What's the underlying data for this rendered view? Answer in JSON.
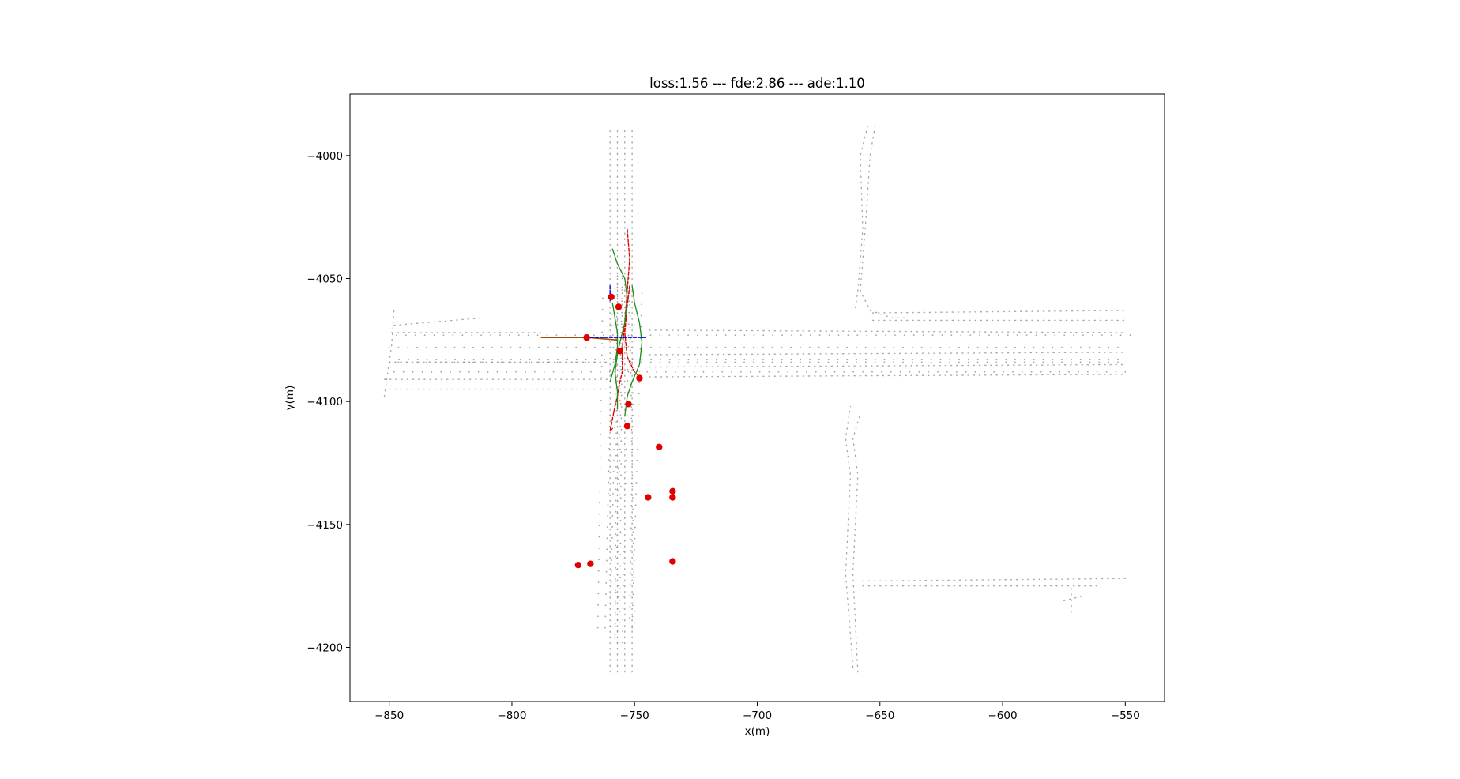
{
  "chart_data": {
    "type": "scatter",
    "title": "loss:1.56 --- fde:2.86 --- ade:1.10",
    "xlabel": "x(m)",
    "ylabel": "y(m)",
    "xlim": [
      -866,
      -534
    ],
    "ylim": [
      -4222,
      -3975
    ],
    "xticks": [
      {
        "value": -850,
        "label": "−850"
      },
      {
        "value": -800,
        "label": "−800"
      },
      {
        "value": -750,
        "label": "−750"
      },
      {
        "value": -700,
        "label": "−700"
      },
      {
        "value": -650,
        "label": "−650"
      },
      {
        "value": -600,
        "label": "−600"
      },
      {
        "value": -550,
        "label": "−550"
      }
    ],
    "yticks": [
      {
        "value": -4000,
        "label": "−4000"
      },
      {
        "value": -4050,
        "label": "−4050"
      },
      {
        "value": -4100,
        "label": "−4100"
      },
      {
        "value": -4150,
        "label": "−4150"
      },
      {
        "value": -4200,
        "label": "−4200"
      }
    ],
    "grid": false,
    "legend": "none",
    "colors": {
      "lane": "#8c8c8c",
      "agents": "#e00000",
      "history": "#0000e0",
      "ground_truth": "#e00000",
      "prediction": "#1a8c1a",
      "target_path": "#a05000",
      "axes": "#000000"
    },
    "lane_dots": [
      {
        "xs": [
          -755,
          -752
        ],
        "ys": [
          -4198,
          -4050
        ],
        "step": 4.5
      },
      {
        "xs": [
          -760,
          -757
        ],
        "ys": [
          -4196,
          -4052
        ],
        "step": 4.5
      },
      {
        "xs": [
          -758,
          -755
        ],
        "ys": [
          -4196,
          -4049
        ],
        "step": 4.5
      },
      {
        "xs": [
          -765,
          -763
        ],
        "ys": [
          -4192,
          -4058
        ],
        "step": 4.5
      },
      {
        "xs": [
          -762,
          -759
        ],
        "ys": [
          -4192,
          -4060
        ],
        "step": 4.5
      },
      {
        "xs": [
          -750,
          -752
        ],
        "ys": [
          -4190,
          -4056
        ],
        "step": 4.5
      },
      {
        "xs": [
          -758,
          -757
        ],
        "ys": [
          -4195,
          -4049
        ],
        "step": 4.5
      },
      {
        "xs": [
          -757,
          -755
        ],
        "ys": [
          -4198,
          -4050
        ],
        "step": 4.5
      },
      {
        "xs": [
          -752,
          -750
        ],
        "ys": [
          -4188,
          -4060
        ],
        "step": 4.5
      },
      {
        "xs": [
          -756,
          -755
        ],
        "ys": [
          -4190,
          -4056
        ],
        "step": 4.5
      },
      {
        "xs": [
          -751,
          -747
        ],
        "ys": [
          -4192,
          -4056
        ],
        "step": 4.5
      },
      {
        "xs": [
          -848,
          -550
        ],
        "ys": [
          -4088,
          -4088
        ],
        "step": 3.8
      },
      {
        "xs": [
          -850,
          -553
        ],
        "ys": [
          -4084,
          -4084
        ],
        "step": 3.8
      },
      {
        "xs": [
          -847,
          -548
        ],
        "ys": [
          -4073,
          -4073
        ],
        "step": 3.8
      },
      {
        "xs": [
          -850,
          -553
        ],
        "ys": [
          -4078,
          -4078
        ],
        "step": 3.8
      },
      {
        "xs": [
          -846,
          -553
        ],
        "ys": [
          -4083,
          -4083
        ],
        "step": 3.8
      }
    ],
    "lanes": [
      {
        "x": [
          -760,
          -760
        ],
        "y": [
          -4210,
          -3988
        ]
      },
      {
        "x": [
          -757,
          -757
        ],
        "y": [
          -4210,
          -3988
        ]
      },
      {
        "x": [
          -754,
          -754
        ],
        "y": [
          -4210,
          -3988
        ]
      },
      {
        "x": [
          -751,
          -751
        ],
        "y": [
          -4210,
          -3988
        ]
      },
      {
        "x": [
          -661,
          -664,
          -662,
          -664,
          -662
        ],
        "y": [
          -4208,
          -4170,
          -4130,
          -4115,
          -4102
        ]
      },
      {
        "x": [
          -659,
          -661,
          -659,
          -661,
          -658
        ],
        "y": [
          -4210,
          -4170,
          -4130,
          -4115,
          -4105
        ]
      },
      {
        "x": [
          -655,
          -658,
          -657,
          -659,
          -660
        ],
        "y": [
          -3988,
          -4000,
          -4030,
          -4055,
          -4062
        ]
      },
      {
        "x": [
          -652,
          -654,
          -656,
          -658,
          -654,
          -645,
          -640
        ],
        "y": [
          -3988,
          -4000,
          -4030,
          -4055,
          -4063,
          -4066,
          -4066
        ]
      },
      {
        "x": [
          -852,
          -849,
          -848
        ],
        "y": [
          -4098,
          -4077,
          -4062
        ]
      },
      {
        "x": [
          -848,
          -812
        ],
        "y": [
          -4069,
          -4066
        ]
      },
      {
        "x": [
          -849,
          -787
        ],
        "y": [
          -4072,
          -4072
        ]
      },
      {
        "x": [
          -850,
          -760
        ],
        "y": [
          -4084,
          -4084
        ]
      },
      {
        "x": [
          -852,
          -760
        ],
        "y": [
          -4091,
          -4091
        ]
      },
      {
        "x": [
          -850,
          -760
        ],
        "y": [
          -4095,
          -4095
        ]
      },
      {
        "x": [
          -744,
          -550
        ],
        "y": [
          -4071,
          -4072
        ]
      },
      {
        "x": [
          -744,
          -550
        ],
        "y": [
          -4081,
          -4080
        ]
      },
      {
        "x": [
          -744,
          -550
        ],
        "y": [
          -4086,
          -4085
        ]
      },
      {
        "x": [
          -744,
          -550
        ],
        "y": [
          -4090,
          -4089
        ]
      },
      {
        "x": [
          -653,
          -550
        ],
        "y": [
          -4064,
          -4063
        ]
      },
      {
        "x": [
          -653,
          -550
        ],
        "y": [
          -4067,
          -4067
        ]
      },
      {
        "x": [
          -657,
          -550
        ],
        "y": [
          -4173,
          -4172
        ]
      },
      {
        "x": [
          -657,
          -560
        ],
        "y": [
          -4175,
          -4175
        ]
      },
      {
        "x": [
          -572,
          -572
        ],
        "y": [
          -4176,
          -4186
        ]
      },
      {
        "x": [
          -575,
          -571,
          -567
        ],
        "y": [
          -4181,
          -4180,
          -4179
        ]
      }
    ],
    "agents": {
      "x": [
        -759.5,
        -756.5,
        -769.5,
        -756,
        -748,
        -752.5,
        -753,
        -740,
        -744.5,
        -734.5,
        -734.5,
        -734.5,
        -773,
        -768
      ],
      "y": [
        -4057.5,
        -4061.5,
        -4074,
        -4079.5,
        -4090.5,
        -4101,
        -4110,
        -4118.5,
        -4139,
        -4136.5,
        -4139,
        -4165,
        -4166.5,
        -4166
      ]
    },
    "history": [
      {
        "x": [
          -760,
          -760
        ],
        "y": [
          -4053,
          -4059
        ]
      },
      {
        "x": [
          -768,
          -745
        ],
        "y": [
          -4074,
          -4074
        ]
      }
    ],
    "ground_truth": [
      {
        "x": [
          -753,
          -752,
          -753,
          -754,
          -755,
          -755,
          -756,
          -757,
          -758,
          -759,
          -760,
          -759
        ],
        "y": [
          -4030,
          -4042,
          -4055,
          -4068,
          -4078,
          -4088,
          -4092,
          -4098,
          -4102,
          -4107,
          -4112,
          -4111
        ]
      },
      {
        "x": [
          -752,
          -753,
          -754,
          -753,
          -750,
          -748,
          -749
        ],
        "y": [
          -4053,
          -4061,
          -4072,
          -4082,
          -4088,
          -4090,
          -4091
        ]
      }
    ],
    "prediction": [
      {
        "x": [
          -759,
          -757,
          -754,
          -753,
          -754,
          -756,
          -757,
          -758,
          -757,
          -757,
          -757
        ],
        "y": [
          -4038,
          -4044,
          -4050,
          -4058,
          -4068,
          -4076,
          -4081,
          -4088,
          -4096,
          -4100,
          -4103
        ]
      },
      {
        "x": [
          -751,
          -750,
          -748,
          -747,
          -748,
          -751,
          -753,
          -754
        ],
        "y": [
          -4053,
          -4060,
          -4068,
          -4076,
          -4085,
          -4092,
          -4098,
          -4106
        ]
      },
      {
        "x": [
          -759,
          -758,
          -757,
          -757,
          -758,
          -760
        ],
        "y": [
          -4060,
          -4066,
          -4072,
          -4078,
          -4085,
          -4092
        ]
      }
    ],
    "target_path": [
      {
        "x": [
          -788,
          -769,
          -757
        ],
        "y": [
          -4074,
          -4074,
          -4075
        ]
      }
    ]
  }
}
